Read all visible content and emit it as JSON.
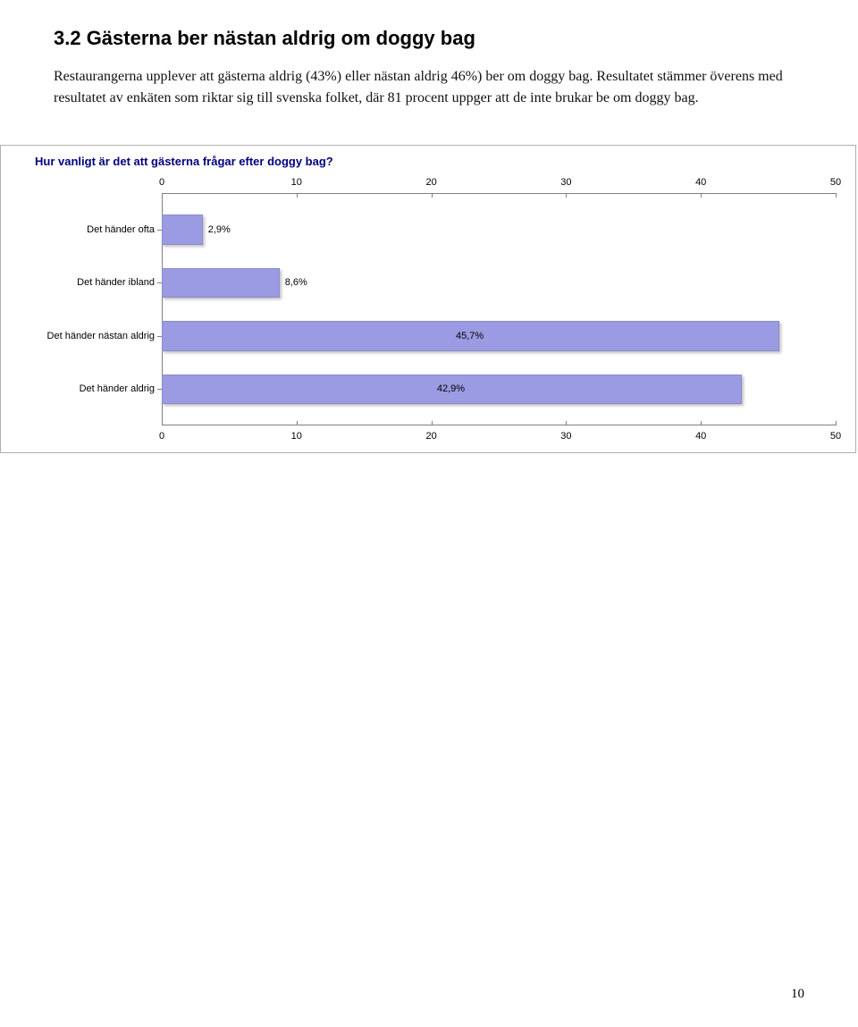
{
  "heading": "3.2  Gästerna ber nästan aldrig om doggy bag",
  "body": "Restaurangerna upplever att gästerna aldrig (43%) eller nästan aldrig 46%) ber om doggy bag. Resultatet stämmer överens med resultatet av enkäten som riktar sig till svenska folket, där 81 procent uppger att de inte brukar be om doggy bag.",
  "page_number": "10",
  "chart": {
    "type": "bar-horizontal",
    "title": "Hur vanligt är det att gästerna frågar efter doggy bag?",
    "title_color": "#000080",
    "title_fontsize": 13,
    "bar_color": "#9b9be3",
    "background_color": "#ffffff",
    "axis_color": "#808080",
    "label_fontsize": 11,
    "xlim": [
      0,
      50
    ],
    "xtick_step": 10,
    "xticks": [
      "0",
      "10",
      "20",
      "30",
      "40",
      "50"
    ],
    "categories": [
      {
        "label": "Det händer ofta",
        "value": 2.9,
        "value_label": "2,9%"
      },
      {
        "label": "Det händer ibland",
        "value": 8.6,
        "value_label": "8,6%"
      },
      {
        "label": "Det händer nästan aldrig",
        "value": 45.7,
        "value_label": "45,7%"
      },
      {
        "label": "Det händer aldrig",
        "value": 42.9,
        "value_label": "42,9%"
      }
    ]
  }
}
